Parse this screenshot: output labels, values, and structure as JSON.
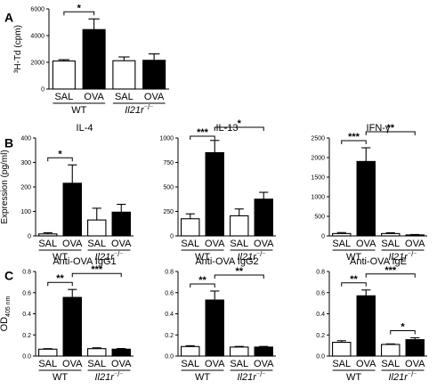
{
  "chart_data": [
    {
      "panel": "A",
      "type": "bar",
      "title": "",
      "ylabel": "³H-Td (cpm)",
      "ylim": [
        0,
        6000
      ],
      "yticks": [
        0,
        2000,
        4000,
        6000
      ],
      "categories": [
        "SAL",
        "OVA",
        "SAL",
        "OVA"
      ],
      "groups": [
        "WT",
        "Il21r⁻/⁻"
      ],
      "values": [
        2100,
        4450,
        2120,
        2150
      ],
      "errors": [
        100,
        800,
        280,
        480
      ],
      "fills": [
        "#ffffff",
        "#000000",
        "#ffffff",
        "#000000"
      ],
      "significance": [
        {
          "from": 0,
          "to": 1,
          "label": "*"
        }
      ]
    },
    {
      "panel": "B",
      "type": "bar",
      "title": "IL-4",
      "ylabel": "Expression (pg/ml)",
      "ylim": [
        0,
        400
      ],
      "yticks": [
        0,
        100,
        200,
        300,
        400
      ],
      "categories": [
        "SAL",
        "OVA",
        "SAL",
        "OVA"
      ],
      "groups": [
        "WT",
        "Il21r⁻/⁻"
      ],
      "values": [
        8,
        215,
        65,
        97
      ],
      "errors": [
        5,
        75,
        48,
        32
      ],
      "fills": [
        "#ffffff",
        "#000000",
        "#ffffff",
        "#000000"
      ],
      "significance": [
        {
          "from": 0,
          "to": 1,
          "label": "*"
        }
      ]
    },
    {
      "panel": "",
      "type": "bar",
      "title": "IL-13",
      "ylabel": "",
      "ylim": [
        0,
        1000
      ],
      "yticks": [
        0,
        250,
        500,
        750,
        1000
      ],
      "categories": [
        "SAL",
        "OVA",
        "SAL",
        "OVA"
      ],
      "groups": [
        "WT",
        "Il21r⁻/⁻"
      ],
      "values": [
        175,
        850,
        205,
        375
      ],
      "errors": [
        50,
        125,
        70,
        70
      ],
      "fills": [
        "#ffffff",
        "#000000",
        "#ffffff",
        "#000000"
      ],
      "significance": [
        {
          "from": 0,
          "to": 1,
          "label": "***"
        },
        {
          "from": 1,
          "to": 3,
          "label": "*"
        }
      ]
    },
    {
      "panel": "",
      "type": "bar",
      "title": "IFN-γ",
      "ylabel": "",
      "ylim": [
        0,
        2500
      ],
      "yticks": [
        0,
        500,
        1000,
        1500,
        2000,
        2500
      ],
      "categories": [
        "SAL",
        "OVA",
        "SAL",
        "OVA"
      ],
      "groups": [
        "WT",
        "Il21r⁻/⁻"
      ],
      "values": [
        60,
        1900,
        60,
        25
      ],
      "errors": [
        25,
        350,
        20,
        10
      ],
      "fills": [
        "#ffffff",
        "#000000",
        "#ffffff",
        "#000000"
      ],
      "significance": [
        {
          "from": 0,
          "to": 1,
          "label": "***"
        },
        {
          "from": 1,
          "to": 3,
          "label": "**"
        }
      ]
    },
    {
      "panel": "C",
      "type": "bar",
      "title": "Anti-OVA IgG1",
      "ylabel": "OD405 nm",
      "ylabel_main": "OD",
      "ylabel_sub": "405 nm",
      "ylim": [
        0,
        0.8
      ],
      "yticks": [
        0.0,
        0.2,
        0.4,
        0.6,
        0.8
      ],
      "ytick_decimals": 1,
      "categories": [
        "SAL",
        "OVA",
        "SAL",
        "OVA"
      ],
      "groups": [
        "WT",
        "Il21r⁻/⁻"
      ],
      "values": [
        0.065,
        0.555,
        0.07,
        0.065
      ],
      "errors": [
        0.005,
        0.075,
        0.008,
        0.006
      ],
      "fills": [
        "#ffffff",
        "#000000",
        "#ffffff",
        "#000000"
      ],
      "significance": [
        {
          "from": 0,
          "to": 1,
          "label": "**"
        },
        {
          "from": 1,
          "to": 3,
          "label": "***"
        }
      ]
    },
    {
      "panel": "",
      "type": "bar",
      "title": "Anti-OVA IgG2",
      "ylabel": "",
      "ylim": [
        0,
        0.8
      ],
      "yticks": [
        0.0,
        0.2,
        0.4,
        0.6,
        0.8
      ],
      "ytick_decimals": 1,
      "categories": [
        "SAL",
        "OVA",
        "SAL",
        "OVA"
      ],
      "groups": [
        "WT",
        "Il21r⁻/⁻"
      ],
      "values": [
        0.09,
        0.53,
        0.085,
        0.085
      ],
      "errors": [
        0.008,
        0.085,
        0.006,
        0.006
      ],
      "fills": [
        "#ffffff",
        "#000000",
        "#ffffff",
        "#000000"
      ],
      "significance": [
        {
          "from": 0,
          "to": 1,
          "label": "**"
        },
        {
          "from": 1,
          "to": 3,
          "label": "**"
        }
      ]
    },
    {
      "panel": "",
      "type": "bar",
      "title": "Anti-OVA IgE",
      "ylabel": "",
      "ylim": [
        0,
        0.8
      ],
      "yticks": [
        0.0,
        0.2,
        0.4,
        0.6,
        0.8
      ],
      "ytick_decimals": 1,
      "categories": [
        "SAL",
        "OVA",
        "SAL",
        "OVA"
      ],
      "groups": [
        "WT",
        "Il21r⁻/⁻"
      ],
      "values": [
        0.13,
        0.57,
        0.11,
        0.155
      ],
      "errors": [
        0.015,
        0.055,
        0.005,
        0.018
      ],
      "fills": [
        "#ffffff",
        "#000000",
        "#ffffff",
        "#000000"
      ],
      "significance": [
        {
          "from": 0,
          "to": 1,
          "label": "**"
        },
        {
          "from": 1,
          "to": 3,
          "label": "***"
        },
        {
          "from": 2,
          "to": 3,
          "label": "*"
        }
      ]
    }
  ]
}
